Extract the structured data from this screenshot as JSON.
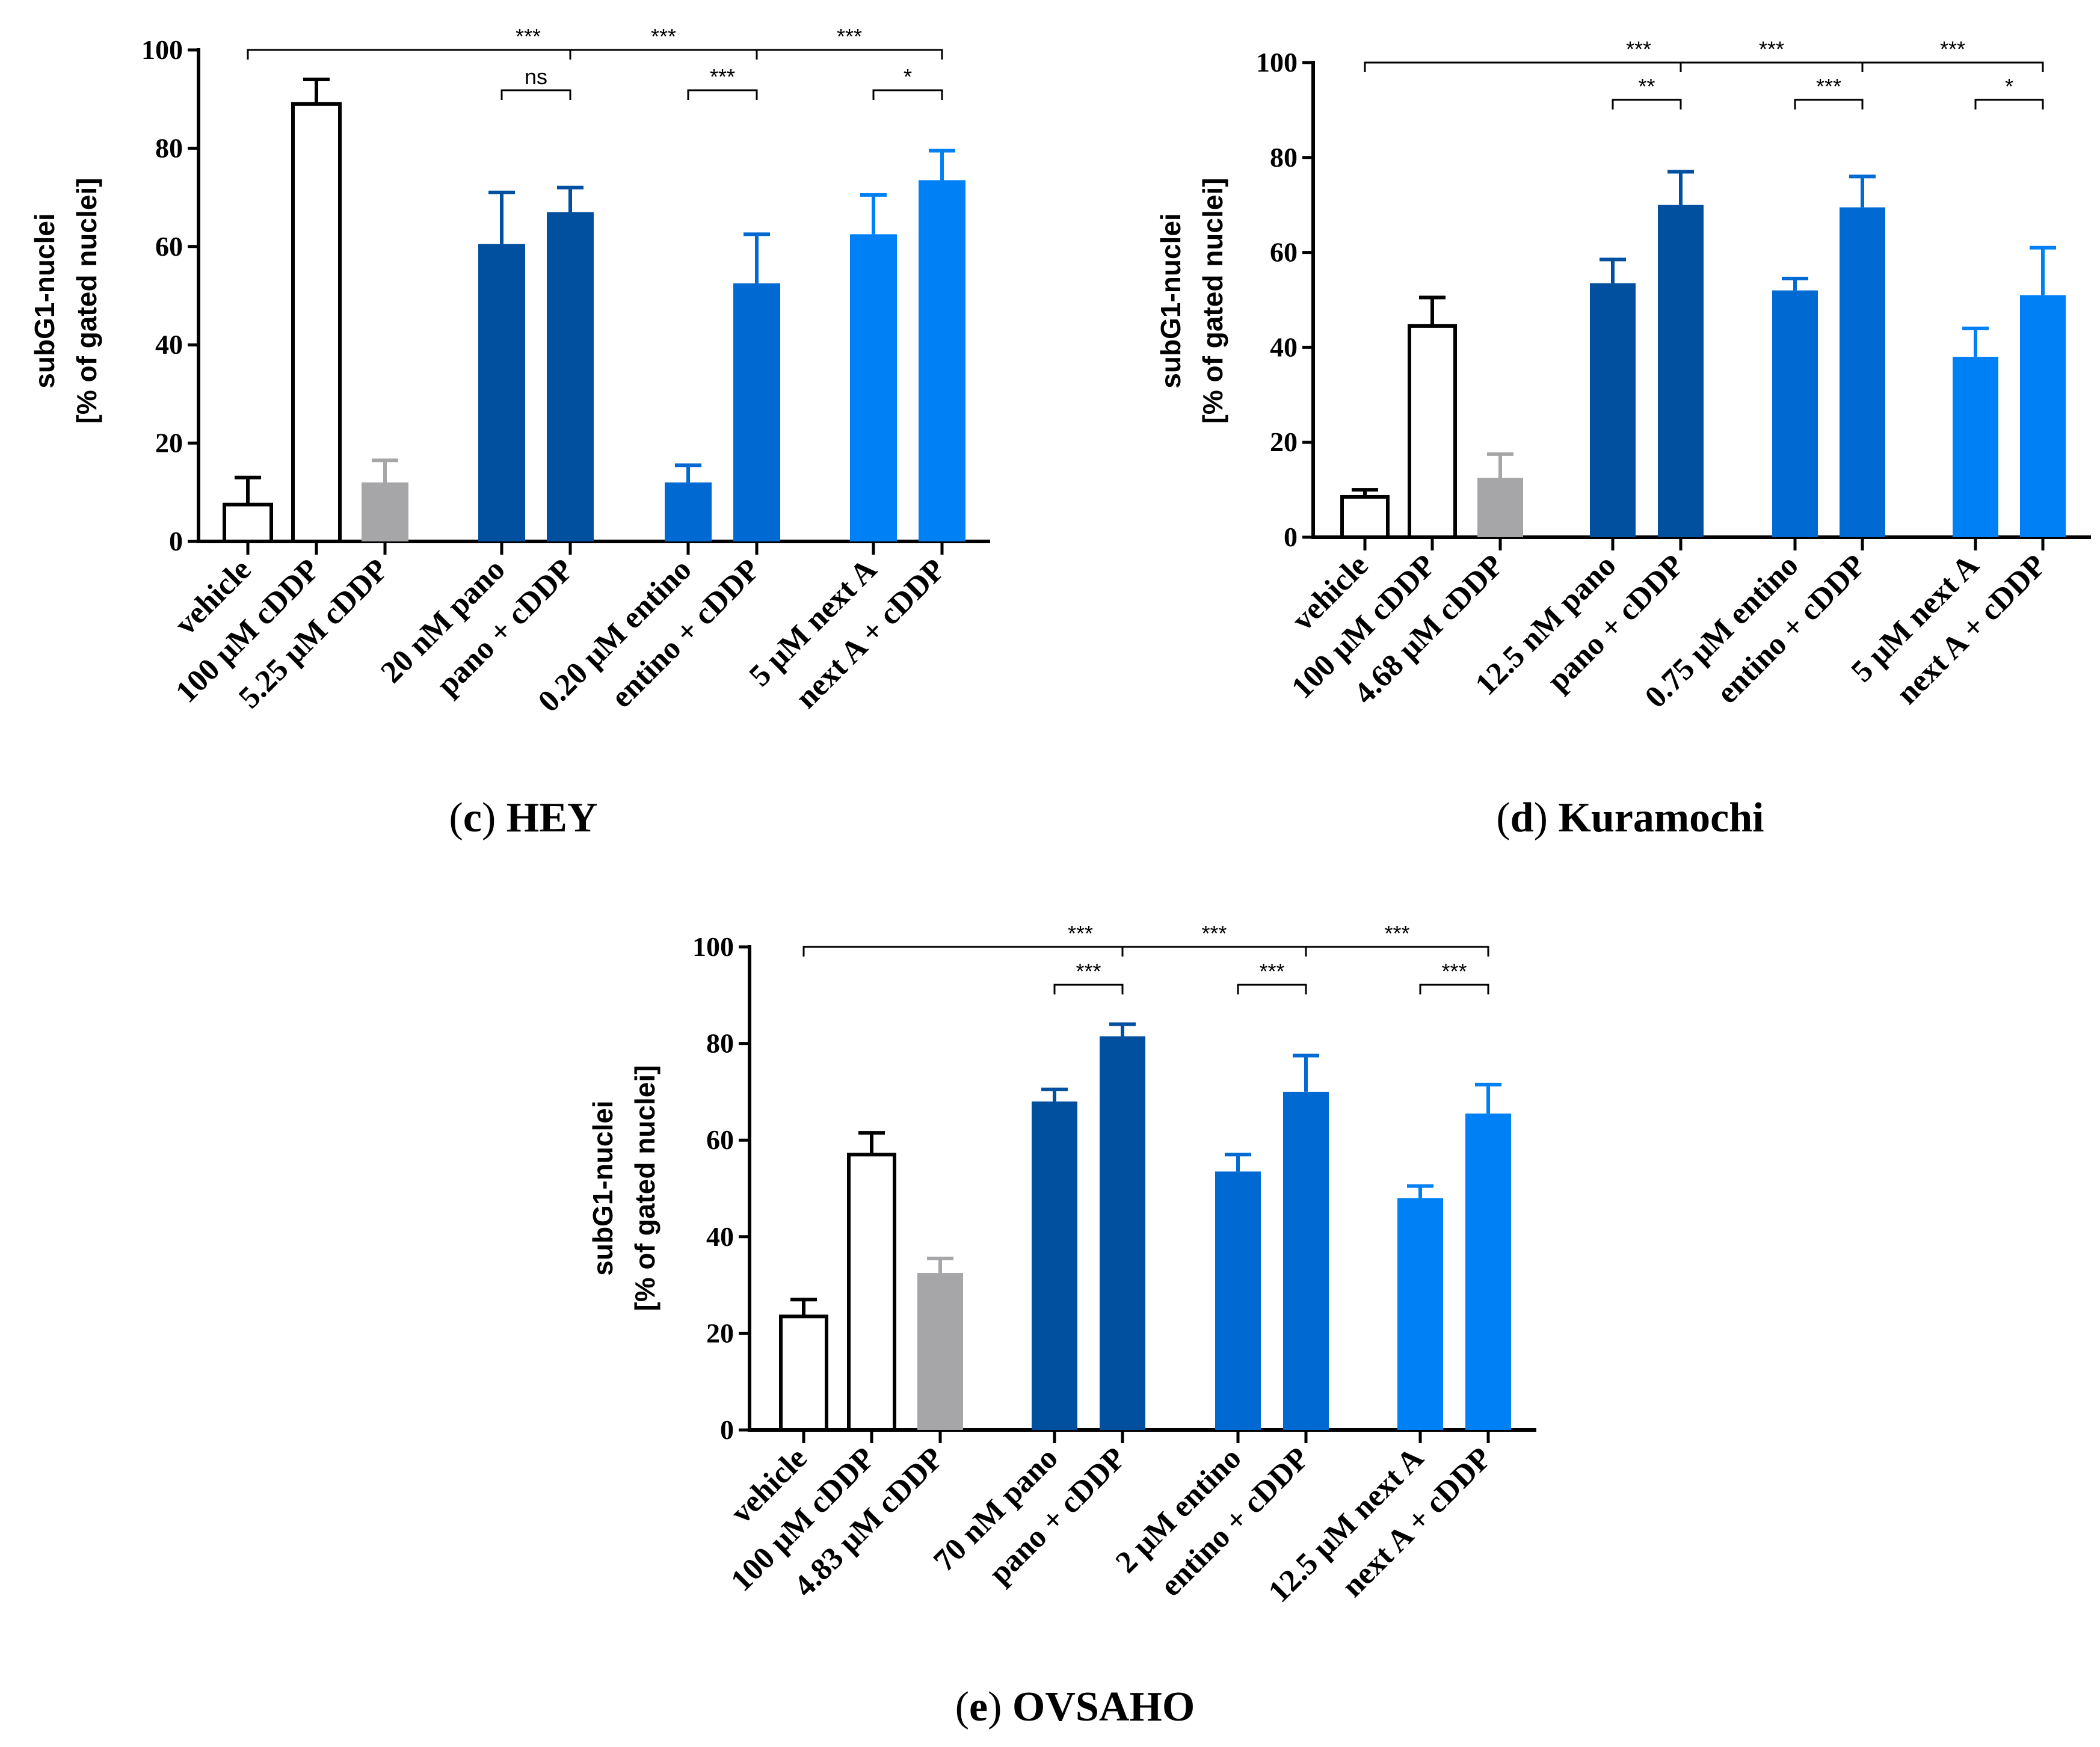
{
  "colors": {
    "vehicle": "#ffffff",
    "cddp_high": "#ffffff",
    "cddp_ic": "#a6a6a8",
    "pano": "#00509f",
    "entino": "#006ad2",
    "nexta": "#0080f5",
    "axis": "#000000"
  },
  "chart_data": [
    {
      "type": "bar",
      "panel": "c",
      "cell_line": "HEY",
      "ylabel_line1": "subG1-nuclei",
      "ylabel_line2": "[% of gated nuclei]",
      "ylim": [
        0,
        100
      ],
      "yticks": [
        "0",
        "20",
        "40",
        "60",
        "80",
        "100"
      ],
      "categories": [
        "vehicle",
        "100 μM cDDP",
        "5.25 μM cDDP",
        "20 nM pano",
        "pano + cDDP",
        "0.20 μM entino",
        "entino + cDDP",
        "5 μM next A",
        "next A + cDDP"
      ],
      "values": [
        7.5,
        89,
        12,
        60.5,
        67,
        12,
        52.5,
        62.5,
        73.5
      ],
      "errors": [
        5.5,
        5,
        4.5,
        10.5,
        5,
        3.5,
        10,
        8,
        6
      ],
      "color_keys": [
        "vehicle",
        "cddp_high",
        "cddp_ic",
        "pano",
        "pano",
        "entino",
        "entino",
        "nexta",
        "nexta"
      ],
      "significance": [
        {
          "from": 0,
          "to": 4,
          "label": "***",
          "level": "top"
        },
        {
          "from": 4,
          "to": 6,
          "label": "***",
          "level": "top"
        },
        {
          "from": 6,
          "to": 8,
          "label": "***",
          "level": "top"
        },
        {
          "from": 3,
          "to": 4,
          "label": "ns",
          "level": "pair"
        },
        {
          "from": 5,
          "to": 6,
          "label": "***",
          "level": "pair"
        },
        {
          "from": 7,
          "to": 8,
          "label": "*",
          "level": "pair"
        }
      ],
      "caption_letter": "c"
    },
    {
      "type": "bar",
      "panel": "d",
      "cell_line": "Kuramochi",
      "ylabel_line1": "subG1-nuclei",
      "ylabel_line2": "[% of gated nuclei]",
      "ylim": [
        0,
        100
      ],
      "yticks": [
        "0",
        "20",
        "40",
        "60",
        "80",
        "100"
      ],
      "categories": [
        "vehicle",
        "100 μM cDDP",
        "4.68 μM cDDP",
        "12.5 nM pano",
        "pano + cDDP",
        "0.75 μM entino",
        "entino + cDDP",
        "5 μM next A",
        "next A + cDDP"
      ],
      "values": [
        8.5,
        44.5,
        12.5,
        53.5,
        70,
        52,
        69.5,
        38,
        51
      ],
      "errors": [
        1.5,
        6,
        5,
        5,
        7,
        2.5,
        6.5,
        6,
        10
      ],
      "color_keys": [
        "vehicle",
        "cddp_high",
        "cddp_ic",
        "pano",
        "pano",
        "entino",
        "entino",
        "nexta",
        "nexta"
      ],
      "significance": [
        {
          "from": 0,
          "to": 4,
          "label": "***",
          "level": "top"
        },
        {
          "from": 4,
          "to": 6,
          "label": "***",
          "level": "top"
        },
        {
          "from": 6,
          "to": 8,
          "label": "***",
          "level": "top"
        },
        {
          "from": 3,
          "to": 4,
          "label": "**",
          "level": "pair"
        },
        {
          "from": 5,
          "to": 6,
          "label": "***",
          "level": "pair"
        },
        {
          "from": 7,
          "to": 8,
          "label": "*",
          "level": "pair"
        }
      ],
      "caption_letter": "d"
    },
    {
      "type": "bar",
      "panel": "e",
      "cell_line": "OVSAHO",
      "ylabel_line1": "subG1-nuclei",
      "ylabel_line2": "[% of gated nuclei]",
      "ylim": [
        0,
        100
      ],
      "yticks": [
        "0",
        "20",
        "40",
        "60",
        "80",
        "100"
      ],
      "categories": [
        "vehicle",
        "100 μM cDDP",
        "4.83 μM cDDP",
        "70 nM pano",
        "pano + cDDP",
        "2 μM entino",
        "entino + cDDP",
        "12.5 μM next A",
        "next A + cDDP"
      ],
      "values": [
        23.5,
        57,
        32.5,
        68,
        81.5,
        53.5,
        70,
        48,
        65.5
      ],
      "errors": [
        3.5,
        4.5,
        3,
        2.5,
        2.5,
        3.5,
        7.5,
        2.5,
        6
      ],
      "color_keys": [
        "vehicle",
        "cddp_high",
        "cddp_ic",
        "pano",
        "pano",
        "entino",
        "entino",
        "nexta",
        "nexta"
      ],
      "significance": [
        {
          "from": 0,
          "to": 4,
          "label": "***",
          "level": "top"
        },
        {
          "from": 4,
          "to": 6,
          "label": "***",
          "level": "top"
        },
        {
          "from": 6,
          "to": 8,
          "label": "***",
          "level": "top"
        },
        {
          "from": 3,
          "to": 4,
          "label": "***",
          "level": "pair"
        },
        {
          "from": 5,
          "to": 6,
          "label": "***",
          "level": "pair"
        },
        {
          "from": 7,
          "to": 8,
          "label": "***",
          "level": "pair"
        }
      ],
      "caption_letter": "e"
    }
  ]
}
